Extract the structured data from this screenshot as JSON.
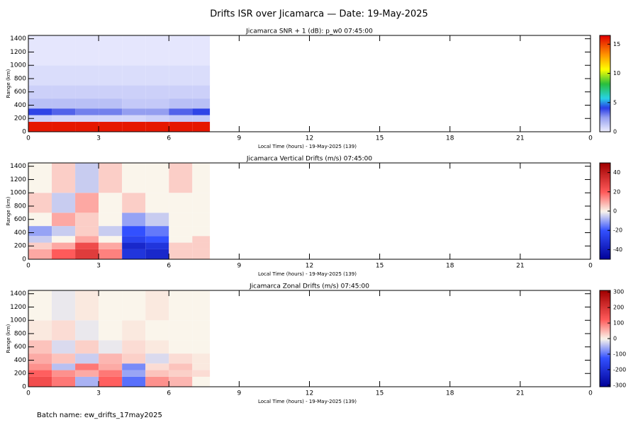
{
  "suptitle": "Drifts ISR over Jicamarca — Date: 19-May-2025",
  "batch_label": "Batch name: ew_drifts_17may2025",
  "chart_data": [
    {
      "type": "heatmap",
      "title": "Jicamarca SNR + 1 (dB): p_w0 07:45:00",
      "colormap": "snr",
      "x_label": "Local Time (hours) - 19-May-2025 (139)",
      "y_label": "Range (km)",
      "x_edges": [
        0,
        1,
        2,
        3,
        4,
        5,
        6,
        7,
        7.75
      ],
      "y_edges": [
        0,
        150,
        250,
        350,
        500,
        700,
        1000,
        1450
      ],
      "values": [
        [
          16,
          16,
          16,
          16,
          16,
          16,
          16,
          16
        ],
        [
          1,
          0.8,
          0.8,
          0.8,
          0.8,
          1,
          1.2,
          1.2
        ],
        [
          4,
          3.5,
          3,
          3,
          2.5,
          2.5,
          3.5,
          4
        ],
        [
          1.5,
          1.5,
          1.5,
          1.5,
          1.2,
          1.2,
          1.5,
          1.5
        ],
        [
          1,
          1,
          1,
          1,
          1,
          1,
          1,
          1
        ],
        [
          0.6,
          0.6,
          0.6,
          0.6,
          0.6,
          0.6,
          0.6,
          0.6
        ],
        [
          0.3,
          0.3,
          0.3,
          0.3,
          0.3,
          0.3,
          0.3,
          0.3
        ]
      ],
      "xlim": [
        0,
        24
      ],
      "xticks": [
        0,
        3,
        6,
        9,
        12,
        15,
        18,
        21,
        {
          "value": 24,
          "label": "0"
        }
      ],
      "ylim": [
        0,
        1450
      ],
      "yticks": [
        0,
        200,
        400,
        600,
        800,
        1000,
        1200,
        1400
      ],
      "clim": [
        0,
        16.5
      ],
      "cticks": [
        0,
        5,
        10,
        15
      ]
    },
    {
      "type": "heatmap",
      "title": "Jicamarca Vertical Drifts (m/s) 07:45:00",
      "colormap": "diverging",
      "x_label": "Local Time (hours) - 19-May-2025 (139)",
      "y_label": "Range (km)",
      "x_edges": [
        0,
        1,
        2,
        3,
        4,
        5,
        6,
        7,
        7.75
      ],
      "y_edges": [
        0,
        150,
        250,
        350,
        500,
        700,
        1000,
        1450
      ],
      "values": [
        [
          10,
          20,
          30,
          15,
          -30,
          -35,
          5,
          5
        ],
        [
          5,
          10,
          25,
          10,
          -35,
          -30,
          5,
          5
        ],
        [
          -5,
          0,
          10,
          0,
          -25,
          -20,
          0,
          5
        ],
        [
          -10,
          -5,
          5,
          -5,
          -20,
          -15,
          0,
          0
        ],
        [
          0,
          10,
          5,
          0,
          -10,
          -5,
          0,
          0
        ],
        [
          5,
          -5,
          10,
          0,
          5,
          0,
          0,
          0
        ],
        [
          0,
          5,
          -5,
          5,
          0,
          0,
          5,
          0
        ]
      ],
      "xlim": [
        0,
        24
      ],
      "xticks": [
        0,
        3,
        6,
        9,
        12,
        15,
        18,
        21,
        {
          "value": 24,
          "label": "0"
        }
      ],
      "ylim": [
        0,
        1450
      ],
      "yticks": [
        0,
        200,
        400,
        600,
        800,
        1000,
        1200,
        1400
      ],
      "clim": [
        -50,
        50
      ],
      "cticks": [
        -40,
        -20,
        0,
        20,
        40
      ]
    },
    {
      "type": "heatmap",
      "title": "Jicamarca Zonal Drifts (m/s) 07:45:00",
      "colormap": "diverging",
      "x_label": "Local Time (hours) - 19-May-2025 (139)",
      "y_label": "Range (km)",
      "x_edges": [
        0,
        1,
        2,
        3,
        4,
        5,
        6,
        7,
        7.75
      ],
      "y_edges": [
        0,
        150,
        250,
        350,
        500,
        700,
        1000,
        1450
      ],
      "values": [
        [
          150,
          100,
          -50,
          120,
          -100,
          80,
          50,
          0
        ],
        [
          120,
          80,
          60,
          100,
          -60,
          40,
          30,
          20
        ],
        [
          80,
          -40,
          100,
          60,
          -80,
          20,
          40,
          10
        ],
        [
          60,
          40,
          -30,
          50,
          30,
          -20,
          20,
          10
        ],
        [
          40,
          -20,
          30,
          -10,
          20,
          10,
          0,
          0
        ],
        [
          10,
          20,
          -10,
          0,
          10,
          0,
          0,
          0
        ],
        [
          0,
          -10,
          10,
          0,
          0,
          10,
          0,
          0
        ]
      ],
      "xlim": [
        0,
        24
      ],
      "xticks": [
        0,
        3,
        6,
        9,
        12,
        15,
        18,
        21,
        {
          "value": 24,
          "label": "0"
        }
      ],
      "ylim": [
        0,
        1450
      ],
      "yticks": [
        0,
        200,
        400,
        600,
        800,
        1000,
        1200,
        1400
      ],
      "clim": [
        -310,
        310
      ],
      "cticks": [
        -300,
        -200,
        -100,
        0,
        100,
        200,
        300
      ]
    }
  ]
}
